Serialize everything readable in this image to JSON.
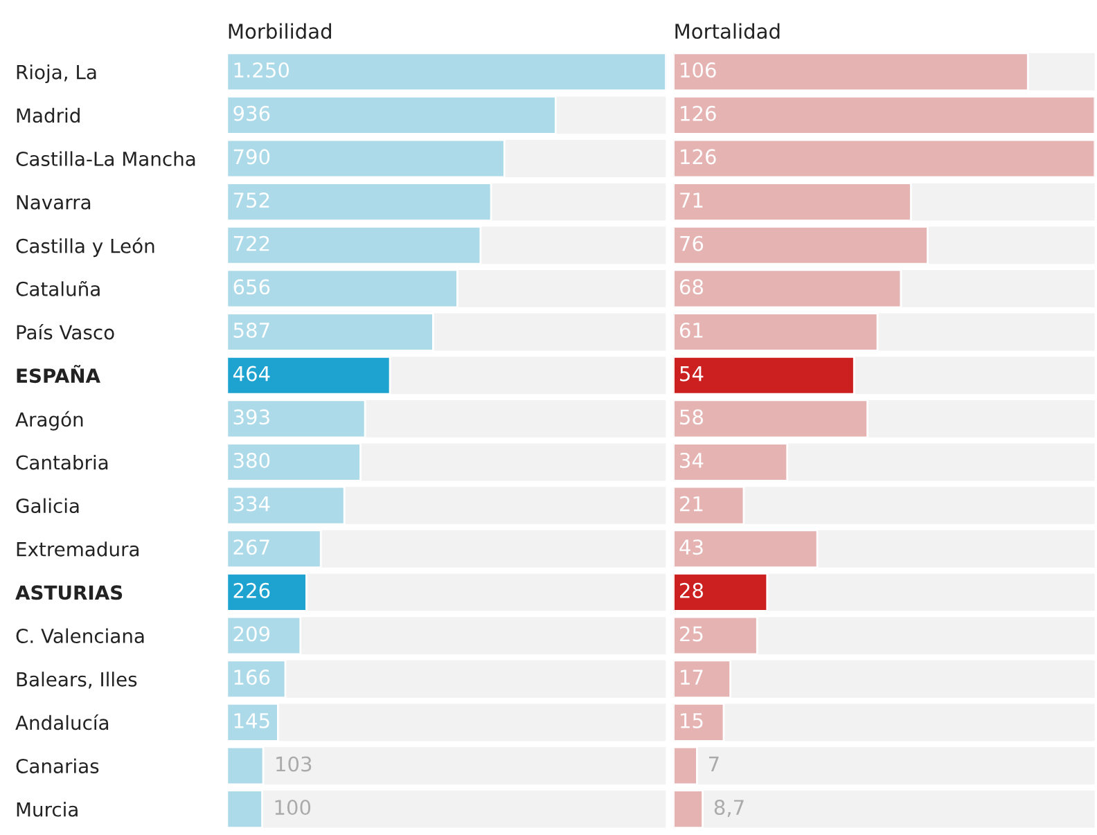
{
  "chart_data": [
    {
      "type": "bar",
      "orientation": "horizontal",
      "title": "Morbilidad",
      "categories": [
        "Rioja, La",
        "Madrid",
        "Castilla-La Mancha",
        "Navarra",
        "Castilla y León",
        "Cataluña",
        "País Vasco",
        "ESPAÑA",
        "Aragón",
        "Cantabria",
        "Galicia",
        "Extremadura",
        "ASTURIAS",
        "C. Valenciana",
        "Balears, Illes",
        "Andalucía",
        "Canarias",
        "Murcia"
      ],
      "values": [
        1250,
        936,
        790,
        752,
        722,
        656,
        587,
        464,
        393,
        380,
        334,
        267,
        226,
        209,
        166,
        145,
        103,
        100
      ],
      "value_labels": [
        "1.250",
        "936",
        "790",
        "752",
        "722",
        "656",
        "587",
        "464",
        "393",
        "380",
        "334",
        "267",
        "226",
        "209",
        "166",
        "145",
        "103",
        "100"
      ],
      "colors": [
        "#acdae8",
        "#acdae8",
        "#acdae8",
        "#acdae8",
        "#acdae8",
        "#acdae8",
        "#acdae8",
        "#1ea3d0",
        "#acdae8",
        "#acdae8",
        "#acdae8",
        "#acdae8",
        "#1ea3d0",
        "#acdae8",
        "#acdae8",
        "#acdae8",
        "#acdae8",
        "#acdae8"
      ],
      "xlim": [
        0,
        1250
      ],
      "tick_labels": "y",
      "grid": false,
      "legend": false
    },
    {
      "type": "bar",
      "orientation": "horizontal",
      "title": "Mortalidad",
      "categories": [
        null,
        null,
        null,
        null,
        null,
        null,
        null,
        null,
        null,
        null,
        null,
        null,
        null,
        null,
        null,
        null,
        null,
        null
      ],
      "values": [
        106,
        126,
        126,
        71,
        76,
        68,
        61,
        54,
        58,
        34,
        21,
        43,
        28,
        25,
        17,
        15,
        7,
        8.7
      ],
      "value_labels": [
        "106",
        "126",
        "126",
        "71",
        "76",
        "68",
        "61",
        "54",
        "58",
        "34",
        "21",
        "43",
        "28",
        "25",
        "17",
        "15",
        "7",
        "8,7"
      ],
      "colors": [
        "#e6b3b3",
        "#e6b3b3",
        "#e6b3b3",
        "#e6b3b3",
        "#e6b3b3",
        "#e6b3b3",
        "#e6b3b3",
        "#cc1f1f",
        "#e6b3b3",
        "#e6b3b3",
        "#e6b3b3",
        "#e6b3b3",
        "#cc1f1f",
        "#e6b3b3",
        "#e6b3b3",
        "#e6b3b3",
        "#e6b3b3",
        "#e6b3b3"
      ],
      "xlim": [
        0,
        126
      ],
      "tick_labels": false,
      "grid": false,
      "legend": false
    }
  ]
}
